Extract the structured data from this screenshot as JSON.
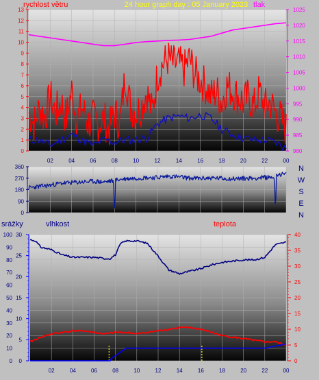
{
  "title": "24 hour graph day : 05 January 2023",
  "colors": {
    "background": "#c0c0c0",
    "title": "#ffff00",
    "wind": "#ff0000",
    "wind_axis": "#ff0000",
    "direction": "#000080",
    "pressure": "#ff00ff",
    "humidity": "#000080",
    "temperature": "#ff0000",
    "rain": "#0000ff",
    "rain_marker": "#ffff00"
  },
  "chart_data": [
    {
      "type": "line",
      "name": "wind-pressure",
      "labels": {
        "left": "rychlost větru",
        "right": "tlak"
      },
      "x_ticks": [
        "02",
        "04",
        "06",
        "08",
        "10",
        "12",
        "14",
        "16",
        "18",
        "20",
        "22",
        "00"
      ],
      "y_left": {
        "range": [
          0,
          13
        ],
        "ticks": [
          "0",
          "1",
          "2",
          "3",
          "4",
          "5",
          "6",
          "7",
          "8",
          "9",
          "10",
          "11",
          "12",
          "13"
        ]
      },
      "y_right": {
        "range": [
          980,
          1025
        ],
        "ticks": [
          "980",
          "985",
          "990",
          "995",
          "1000",
          "1005",
          "1010",
          "1015",
          "1020",
          "1025"
        ]
      },
      "x_range": [
        0,
        24
      ],
      "series": [
        {
          "role": "wind_gust",
          "x": [
            0,
            0.5,
            1,
            1.5,
            2,
            2.5,
            3,
            3.5,
            4,
            4.5,
            5,
            5.5,
            6,
            6.5,
            7,
            7.5,
            8,
            8.5,
            9,
            9.5,
            10,
            10.5,
            11,
            11.5,
            12,
            12.5,
            13,
            13.5,
            14,
            14.5,
            15,
            15.5,
            16,
            16.5,
            17,
            17.5,
            18,
            18.5,
            19,
            19.5,
            20,
            20.5,
            21,
            21.5,
            22,
            22.5,
            23,
            23.5,
            24
          ],
          "y": [
            3.5,
            2.5,
            4,
            3,
            5,
            3.5,
            4.5,
            3,
            5.5,
            3,
            4,
            2.5,
            3,
            2.5,
            3,
            2,
            3.5,
            2.5,
            7,
            4,
            3.5,
            4,
            5.5,
            3.5,
            7,
            8,
            8.5,
            8,
            8,
            7.5,
            8.5,
            7,
            6.5,
            6,
            5,
            5.5,
            4.5,
            6,
            5.5,
            5,
            4.5,
            5,
            4,
            5.5,
            4,
            4.5,
            3.5,
            3,
            2
          ]
        },
        {
          "role": "wind_avg",
          "x": [
            0,
            1,
            2,
            3,
            4,
            5,
            6,
            7,
            8,
            9,
            10,
            11,
            12,
            13,
            14,
            15,
            16,
            17,
            18,
            19,
            20,
            21,
            22,
            23,
            24
          ],
          "y": [
            1,
            1,
            0.5,
            1,
            1.5,
            1,
            0.5,
            1,
            0.8,
            1,
            1,
            1.2,
            2.5,
            3,
            3.2,
            3,
            3.3,
            3,
            2,
            1.5,
            1.2,
            1,
            1,
            0.8,
            0.2
          ]
        },
        {
          "role": "pressure",
          "x": [
            0,
            1,
            2,
            3,
            4,
            5,
            6,
            7,
            8,
            9,
            10,
            11,
            12,
            13,
            14,
            15,
            16,
            17,
            18,
            19,
            20,
            21,
            22,
            23,
            24
          ],
          "y": [
            1017,
            1016.5,
            1016,
            1015.5,
            1015,
            1014.5,
            1014,
            1013.5,
            1013.5,
            1014,
            1014.5,
            1014.8,
            1015,
            1015.2,
            1015.3,
            1015.5,
            1016,
            1016.5,
            1017.5,
            1018.5,
            1019,
            1019.5,
            1020,
            1020.5,
            1020.8
          ]
        }
      ]
    },
    {
      "type": "line",
      "name": "wind-direction",
      "y_ticks": [
        "0",
        "90",
        "180",
        "270",
        "360"
      ],
      "y_range": [
        0,
        360
      ],
      "compass": [
        "N",
        "W",
        "S",
        "E",
        "N"
      ],
      "series": [
        {
          "role": "direction",
          "x": [
            0,
            1,
            2,
            3,
            4,
            5,
            6,
            7,
            7.9,
            8,
            8.1,
            9,
            10,
            11,
            12,
            13,
            14,
            15,
            16,
            17,
            18,
            19,
            20,
            21,
            22,
            22.9,
            23,
            23.1,
            24
          ],
          "y": [
            195,
            205,
            215,
            230,
            235,
            240,
            245,
            240,
            250,
            5,
            255,
            265,
            270,
            275,
            275,
            285,
            280,
            270,
            268,
            272,
            268,
            265,
            268,
            270,
            275,
            280,
            10,
            300,
            300
          ]
        }
      ]
    },
    {
      "type": "line",
      "name": "humidity-temperature-rain",
      "labels": {
        "rain": "srážky",
        "humidity": "vlhkost",
        "temperature": "teplota"
      },
      "x_ticks": [
        "02",
        "04",
        "06",
        "08",
        "10",
        "12",
        "14",
        "16",
        "18",
        "20",
        "22",
        "00"
      ],
      "y_rain": {
        "range": [
          0,
          30
        ],
        "ticks": [
          "0",
          "5",
          "10",
          "15",
          "20",
          "25",
          "30"
        ]
      },
      "y_humidity": {
        "range": [
          0,
          100
        ],
        "ticks": [
          "0",
          "10",
          "20",
          "30",
          "40",
          "50",
          "60",
          "70",
          "80",
          "90",
          "100"
        ]
      },
      "y_temperature": {
        "range": [
          0,
          40
        ],
        "ticks": [
          "0",
          "5",
          "10",
          "15",
          "20",
          "25",
          "30",
          "35",
          "40"
        ]
      },
      "x_range": [
        0,
        24
      ],
      "series": [
        {
          "role": "humidity",
          "x": [
            0,
            0.5,
            1,
            2,
            3,
            4,
            5,
            6,
            7,
            7.5,
            8,
            8.5,
            9,
            10,
            11,
            12,
            13,
            14,
            15,
            16,
            17,
            18,
            19,
            20,
            21,
            22,
            23,
            24
          ],
          "y": [
            96,
            95,
            90,
            88,
            84,
            82,
            82,
            82,
            81,
            81,
            84,
            93,
            95,
            95,
            93,
            83,
            72,
            69,
            71,
            73,
            76,
            78,
            79,
            80,
            80,
            82,
            92,
            94
          ]
        },
        {
          "role": "temperature",
          "x": [
            0,
            1,
            2,
            3,
            4,
            5,
            6,
            7,
            8,
            9,
            10,
            11,
            12,
            13,
            14,
            15,
            16,
            17,
            18,
            19,
            20,
            21,
            22,
            23,
            24
          ],
          "y": [
            6,
            7.5,
            8.5,
            9,
            9.5,
            9.5,
            9,
            8.5,
            9,
            9,
            8.5,
            9,
            9.5,
            10,
            10.5,
            10.5,
            10,
            9,
            8,
            7.5,
            7,
            6.5,
            6,
            6,
            5
          ]
        },
        {
          "role": "rain",
          "x": [
            0,
            7.5,
            7.6,
            9,
            10,
            12,
            14,
            16,
            18,
            20,
            22,
            23,
            24
          ],
          "y": [
            0,
            0,
            0.5,
            3,
            3,
            3,
            3,
            3,
            3,
            3,
            3,
            3.5,
            4
          ]
        }
      ]
    }
  ]
}
